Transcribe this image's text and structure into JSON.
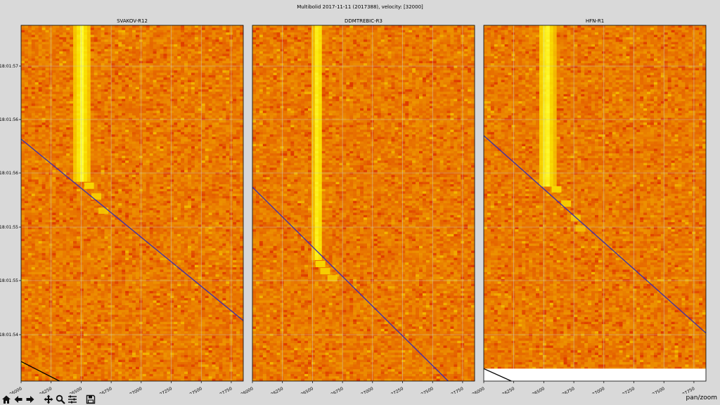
{
  "figure": {
    "suptitle": "Multibolid 2017-11-11 (2017388), velocity: [32000]"
  },
  "colors": {
    "background": "#d9d9d9",
    "heat_low": "#d81c00",
    "heat_mid": "#ff6a00",
    "heat_high": "#ffe040",
    "fit_line": "#3a2fb0",
    "secondary_line": "#000000",
    "grid": "#c8c8c8"
  },
  "chart_data": [
    {
      "type": "heatmap",
      "title": "SVAKOV-R12",
      "colormap": "autumn",
      "xlim": [
        26000,
        27850
      ],
      "x_ticks": [
        26000,
        26250,
        26500,
        26750,
        27000,
        27250,
        27500,
        27750
      ],
      "x_tick_labels": [
        "26000",
        "26250",
        "26500",
        "26750",
        "27000",
        "27250",
        "27500",
        "27750"
      ],
      "y_tick_labels": [
        "18:01:57",
        "18:01:56",
        "18:01:56",
        "18:01:55",
        "18:01:55",
        "18:01:54"
      ],
      "grid": true,
      "echo": {
        "x_start": 26430,
        "x_end": 26580,
        "streak_top_t": 0.0,
        "streak_bottom_t": 0.44,
        "tail": [
          [
            26560,
            0.45
          ],
          [
            26620,
            0.48
          ],
          [
            26680,
            0.52
          ]
        ]
      },
      "lines": [
        {
          "role": "fit",
          "points": [
            [
              26000,
              0.32
            ],
            [
              27850,
              0.83
            ]
          ]
        },
        {
          "role": "secondary",
          "points": [
            [
              26000,
              0.945
            ],
            [
              26320,
              1.0
            ]
          ]
        }
      ],
      "blank_band_t": null
    },
    {
      "type": "heatmap",
      "title": "DDMTREBIC-R3",
      "colormap": "autumn",
      "xlim": [
        26000,
        27850
      ],
      "x_ticks": [
        26000,
        26250,
        26500,
        26750,
        27000,
        27250,
        27500,
        27750
      ],
      "x_tick_labels": [
        "26000",
        "26250",
        "26500",
        "26750",
        "27000",
        "27250",
        "27500",
        "27750"
      ],
      "y_tick_labels": [],
      "grid": true,
      "echo": {
        "x_start": 26500,
        "x_end": 26590,
        "streak_top_t": 0.0,
        "streak_bottom_t": 0.66,
        "tail": [
          [
            26560,
            0.67
          ],
          [
            26600,
            0.69
          ],
          [
            26660,
            0.71
          ]
        ]
      },
      "lines": [
        {
          "role": "fit",
          "points": [
            [
              26000,
              0.455
            ],
            [
              27630,
              1.0
            ]
          ]
        }
      ],
      "blank_band_t": null
    },
    {
      "type": "heatmap",
      "title": "HFN-R1",
      "colormap": "autumn",
      "xlim": [
        26000,
        27850
      ],
      "x_ticks": [
        26000,
        26250,
        26500,
        26750,
        27000,
        27250,
        27500,
        27750
      ],
      "x_tick_labels": [
        "26000",
        "26250",
        "26500",
        "26750",
        "27000",
        "27250",
        "27500",
        "27750"
      ],
      "y_tick_labels": [],
      "grid": true,
      "echo": {
        "x_start": 26450,
        "x_end": 26600,
        "streak_top_t": 0.0,
        "streak_bottom_t": 0.45,
        "tail": [
          [
            26600,
            0.46
          ],
          [
            26680,
            0.5
          ],
          [
            26760,
            0.54
          ],
          [
            26800,
            0.57
          ]
        ]
      },
      "lines": [
        {
          "role": "fit",
          "points": [
            [
              26000,
              0.31
            ],
            [
              27850,
              0.865
            ]
          ]
        },
        {
          "role": "secondary",
          "points": [
            [
              26000,
              0.965
            ],
            [
              26230,
              1.0
            ]
          ]
        }
      ],
      "blank_band_t": [
        0.965,
        1.0
      ]
    }
  ],
  "toolbar": {
    "buttons": [
      {
        "name": "home-button",
        "icon": "home-icon"
      },
      {
        "name": "back-button",
        "icon": "arrow-left-icon"
      },
      {
        "name": "forward-button",
        "icon": "arrow-right-icon"
      },
      {
        "name": "pan-button",
        "icon": "move-icon"
      },
      {
        "name": "zoom-button",
        "icon": "magnifier-icon"
      },
      {
        "name": "configure-subplots-button",
        "icon": "sliders-icon"
      },
      {
        "name": "save-button",
        "icon": "floppy-icon"
      }
    ],
    "mode_label": "pan/zoom"
  }
}
